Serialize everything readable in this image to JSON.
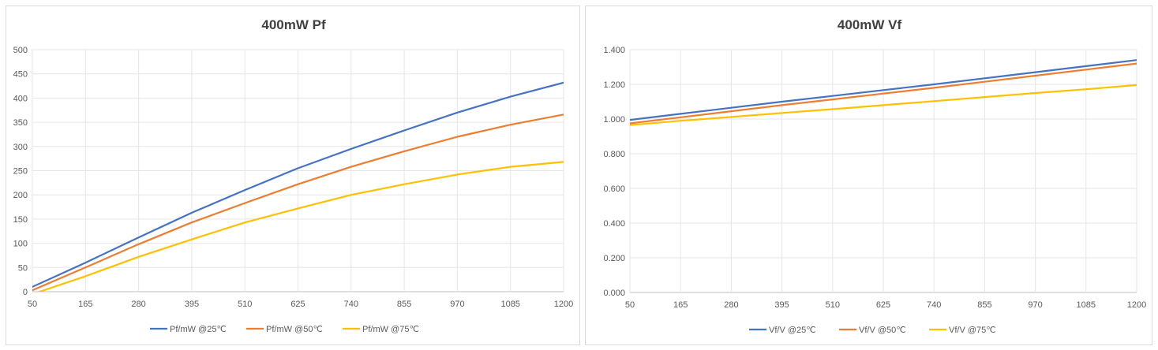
{
  "colors": {
    "series_25": "#4472c4",
    "series_50": "#ed7d31",
    "series_75": "#ffc000",
    "grid": "#e6e6e6",
    "text": "#595959"
  },
  "chart_data": [
    {
      "type": "line",
      "title": "400mW Pf",
      "xlabel": "",
      "ylabel": "",
      "x_ticks": [
        "50",
        "165",
        "280",
        "395",
        "510",
        "625",
        "740",
        "855",
        "970",
        "1085",
        "1200"
      ],
      "y_ticks": [
        "0",
        "50",
        "100",
        "150",
        "200",
        "250",
        "300",
        "350",
        "400",
        "450",
        "500"
      ],
      "xlim": [
        50,
        1200
      ],
      "ylim": [
        0,
        500
      ],
      "grid": true,
      "legend_position": "bottom",
      "x": [
        50,
        165,
        280,
        395,
        510,
        625,
        740,
        855,
        970,
        1085,
        1200
      ],
      "series": [
        {
          "name": "Pf/mW @25℃",
          "color": "#4472c4",
          "values": [
            10,
            60,
            112,
            163,
            210,
            255,
            295,
            333,
            370,
            403,
            432
          ]
        },
        {
          "name": "Pf/mW @50℃",
          "color": "#ed7d31",
          "values": [
            3,
            50,
            98,
            143,
            183,
            222,
            258,
            290,
            320,
            345,
            366
          ]
        },
        {
          "name": "Pf/mW @75℃",
          "color": "#ffc000",
          "values": [
            -5,
            32,
            72,
            108,
            143,
            172,
            200,
            222,
            242,
            258,
            268
          ]
        }
      ]
    },
    {
      "type": "line",
      "title": "400mW Vf",
      "xlabel": "",
      "ylabel": "",
      "x_ticks": [
        "50",
        "165",
        "280",
        "395",
        "510",
        "625",
        "740",
        "855",
        "970",
        "1085",
        "1200"
      ],
      "y_ticks": [
        "0.000",
        "0.200",
        "0.400",
        "0.600",
        "0.800",
        "1.000",
        "1.200",
        "1.400"
      ],
      "xlim": [
        50,
        1200
      ],
      "ylim": [
        0,
        1.4
      ],
      "grid": true,
      "legend_position": "bottom",
      "x": [
        50,
        165,
        280,
        395,
        510,
        625,
        740,
        855,
        970,
        1085,
        1200
      ],
      "series": [
        {
          "name": "Vf/V @25℃",
          "color": "#4472c4",
          "values": [
            0.995,
            1.03,
            1.065,
            1.1,
            1.133,
            1.167,
            1.2,
            1.235,
            1.27,
            1.305,
            1.34
          ]
        },
        {
          "name": "Vf/V @50℃",
          "color": "#ed7d31",
          "values": [
            0.975,
            1.01,
            1.045,
            1.08,
            1.113,
            1.147,
            1.18,
            1.215,
            1.25,
            1.285,
            1.32
          ]
        },
        {
          "name": "Vf/V @75℃",
          "color": "#ffc000",
          "values": [
            0.965,
            0.99,
            1.012,
            1.035,
            1.057,
            1.08,
            1.103,
            1.127,
            1.15,
            1.172,
            1.196
          ]
        }
      ]
    }
  ]
}
